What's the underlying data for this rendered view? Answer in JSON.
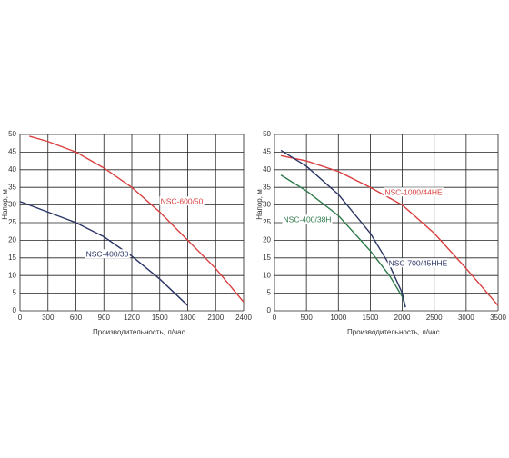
{
  "chart_data": [
    {
      "type": "line",
      "xlabel": "Производительность, л/час",
      "ylabel": "Напор, м",
      "xlim": [
        0,
        2400
      ],
      "xticks": [
        0,
        300,
        600,
        900,
        1200,
        1500,
        1800,
        2100,
        2400
      ],
      "ylim": [
        0,
        50
      ],
      "yticks": [
        0,
        5,
        10,
        15,
        20,
        25,
        30,
        35,
        40,
        45,
        50
      ],
      "grid": true,
      "series": [
        {
          "name": "NSC-600/50",
          "color": "#d9403f",
          "x": [
            100,
            300,
            600,
            900,
            1200,
            1500,
            1800,
            2100,
            2400
          ],
          "values": [
            49.5,
            48,
            45,
            40.5,
            35,
            28,
            20,
            12,
            2.5
          ]
        },
        {
          "name": "NSC-400/30",
          "color": "#2b3566",
          "x": [
            0,
            300,
            600,
            900,
            1200,
            1500,
            1800
          ],
          "values": [
            31,
            28,
            25,
            21,
            15.5,
            9,
            1.5
          ]
        }
      ]
    },
    {
      "type": "line",
      "xlabel": "Производительность, л/час",
      "ylabel": "Напор, м",
      "xlim": [
        0,
        3500
      ],
      "xticks": [
        0,
        500,
        1000,
        1500,
        2000,
        2500,
        3000,
        3500
      ],
      "ylim": [
        0,
        50
      ],
      "yticks": [
        0,
        5,
        10,
        15,
        20,
        25,
        30,
        35,
        40,
        45,
        50
      ],
      "grid": true,
      "series": [
        {
          "name": "NSC-1000/44HE",
          "color": "#d9403f",
          "x": [
            100,
            500,
            1000,
            1500,
            2000,
            2500,
            3000,
            3500
          ],
          "values": [
            44,
            42.5,
            39.5,
            35,
            30,
            22,
            12,
            1.5
          ]
        },
        {
          "name": "NSC-400/38H",
          "color": "#2e7a4a",
          "x": [
            100,
            500,
            1000,
            1500,
            1800,
            2000,
            2050
          ],
          "values": [
            38.5,
            34,
            27,
            17,
            10,
            4,
            1
          ]
        },
        {
          "name": "NSC-700/45HHE",
          "color": "#2b3566",
          "x": [
            100,
            500,
            1000,
            1500,
            1800,
            2000,
            2050
          ],
          "values": [
            45.5,
            41,
            33,
            22,
            13,
            5,
            1
          ]
        }
      ]
    }
  ]
}
